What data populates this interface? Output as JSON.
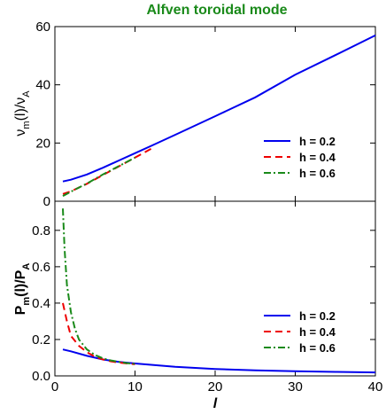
{
  "chart_data": {
    "title": "Alfven toroidal mode",
    "xlabel": "l",
    "xlim": [
      0,
      40
    ],
    "xticks": [
      "0",
      "10",
      "20",
      "30",
      "40"
    ],
    "panels": [
      {
        "type": "line",
        "ylabel_parts": {
          "pre": "ν",
          "sub1": "m",
          "mid": "(l)/ν",
          "sub2": "A"
        },
        "ylim": [
          0,
          60
        ],
        "yticks": [
          "0",
          "20",
          "40",
          "60"
        ],
        "legend_position": "center-right",
        "series": [
          {
            "name": "h = 0.2",
            "color": "#0000ee",
            "dash": "solid",
            "x": [
              1,
              2,
              4,
              6,
              8,
              10,
              12,
              15,
              20,
              25,
              30,
              35,
              40
            ],
            "y": [
              6.8,
              7.4,
              9.2,
              11.5,
              14.0,
              16.5,
              19.0,
              22.8,
              29.2,
              35.7,
              43.5,
              50.2,
              57.0
            ]
          },
          {
            "name": "h = 0.4",
            "color": "#ee0000",
            "dash": "dashed",
            "x": [
              1,
              2,
              4,
              6,
              8,
              10,
              12
            ],
            "y": [
              2.5,
              3.4,
              6.0,
              9.0,
              12.0,
              15.0,
              18.0
            ]
          },
          {
            "name": "h = 0.6",
            "color": "#1a8a1a",
            "dash": "dashdot",
            "x": [
              1,
              2,
              4,
              6,
              8,
              10
            ],
            "y": [
              1.8,
              3.3,
              6.1,
              9.2,
              12.1,
              15.0
            ]
          }
        ]
      },
      {
        "type": "line",
        "ylabel_parts": {
          "pre": "P",
          "sub1": "m",
          "mid": "(l)/P",
          "sub2": "A"
        },
        "ylim": [
          0,
          0.96
        ],
        "yticks": [
          "0.0",
          "0.2",
          "0.4",
          "0.6",
          "0.8"
        ],
        "legend_position": "center-right",
        "series": [
          {
            "name": "h = 0.2",
            "color": "#0000ee",
            "dash": "solid",
            "x": [
              1,
              2,
              4,
              6,
              8,
              10,
              15,
              20,
              25,
              30,
              35,
              40
            ],
            "y": [
              0.145,
              0.135,
              0.11,
              0.09,
              0.077,
              0.068,
              0.05,
              0.038,
              0.03,
              0.026,
              0.022,
              0.019
            ]
          },
          {
            "name": "h = 0.4",
            "color": "#ee0000",
            "dash": "dashed",
            "x": [
              1,
              1.5,
              2,
              3,
              4,
              5,
              6,
              7,
              8,
              9,
              10
            ],
            "y": [
              0.4,
              0.3,
              0.22,
              0.165,
              0.13,
              0.105,
              0.09,
              0.08,
              0.073,
              0.068,
              0.064
            ]
          },
          {
            "name": "h = 0.6",
            "color": "#1a8a1a",
            "dash": "dashdot",
            "x": [
              1,
              1.2,
              1.5,
              2,
              2.5,
              3,
              4,
              5,
              6,
              7,
              8,
              9,
              10
            ],
            "y": [
              0.92,
              0.7,
              0.5,
              0.35,
              0.26,
              0.2,
              0.145,
              0.115,
              0.096,
              0.085,
              0.077,
              0.07,
              0.066
            ]
          }
        ]
      }
    ]
  }
}
